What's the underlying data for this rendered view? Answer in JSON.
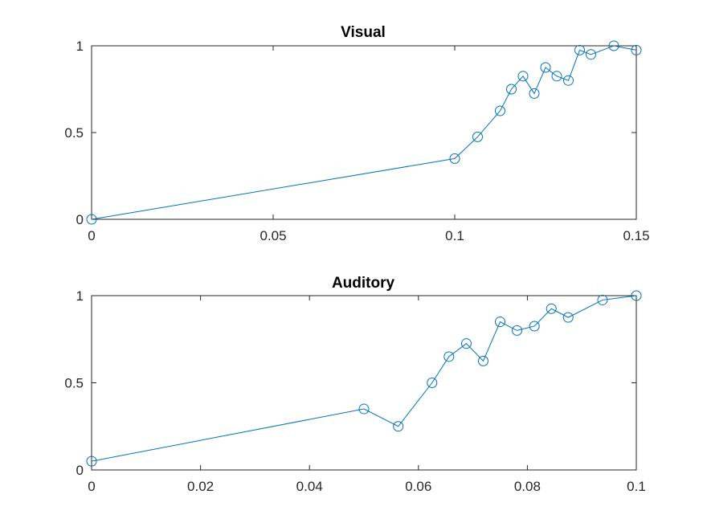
{
  "chart_data": [
    {
      "type": "line",
      "title": "Visual",
      "xlabel": "",
      "ylabel": "",
      "xlim": [
        0,
        0.15
      ],
      "ylim": [
        0,
        1
      ],
      "xticks": [
        0,
        0.05,
        0.1,
        0.15
      ],
      "xtick_labels": [
        "0",
        "0.05",
        "0.1",
        "0.15"
      ],
      "yticks": [
        0,
        0.5,
        1
      ],
      "ytick_labels": [
        "0",
        "0.5",
        "1"
      ],
      "grid": false,
      "marker": "circle",
      "color": "#0072BD",
      "series": [
        {
          "x": [
            0,
            0.1,
            0.1063,
            0.1125,
            0.1156,
            0.1188,
            0.1219,
            0.125,
            0.1281,
            0.1313,
            0.1344,
            0.1375,
            0.1438,
            0.15
          ],
          "y": [
            0,
            0.35,
            0.475,
            0.625,
            0.75,
            0.825,
            0.725,
            0.875,
            0.825,
            0.8,
            0.975,
            0.95,
            1.0,
            0.975
          ]
        }
      ]
    },
    {
      "type": "line",
      "title": "Auditory",
      "xlabel": "",
      "ylabel": "",
      "xlim": [
        0,
        0.1
      ],
      "ylim": [
        0,
        1
      ],
      "xticks": [
        0,
        0.02,
        0.04,
        0.06,
        0.08,
        0.1
      ],
      "xtick_labels": [
        "0",
        "0.02",
        "0.04",
        "0.06",
        "0.08",
        "0.1"
      ],
      "yticks": [
        0,
        0.5,
        1
      ],
      "ytick_labels": [
        "0",
        "0.5",
        "1"
      ],
      "grid": false,
      "marker": "circle",
      "color": "#0072BD",
      "series": [
        {
          "x": [
            0,
            0.05,
            0.0563,
            0.0625,
            0.0656,
            0.0688,
            0.0719,
            0.075,
            0.0781,
            0.0813,
            0.0844,
            0.0875,
            0.0938,
            0.1
          ],
          "y": [
            0.05,
            0.35,
            0.25,
            0.5,
            0.65,
            0.725,
            0.625,
            0.85,
            0.8,
            0.825,
            0.925,
            0.875,
            0.975,
            1.0
          ]
        }
      ]
    }
  ]
}
